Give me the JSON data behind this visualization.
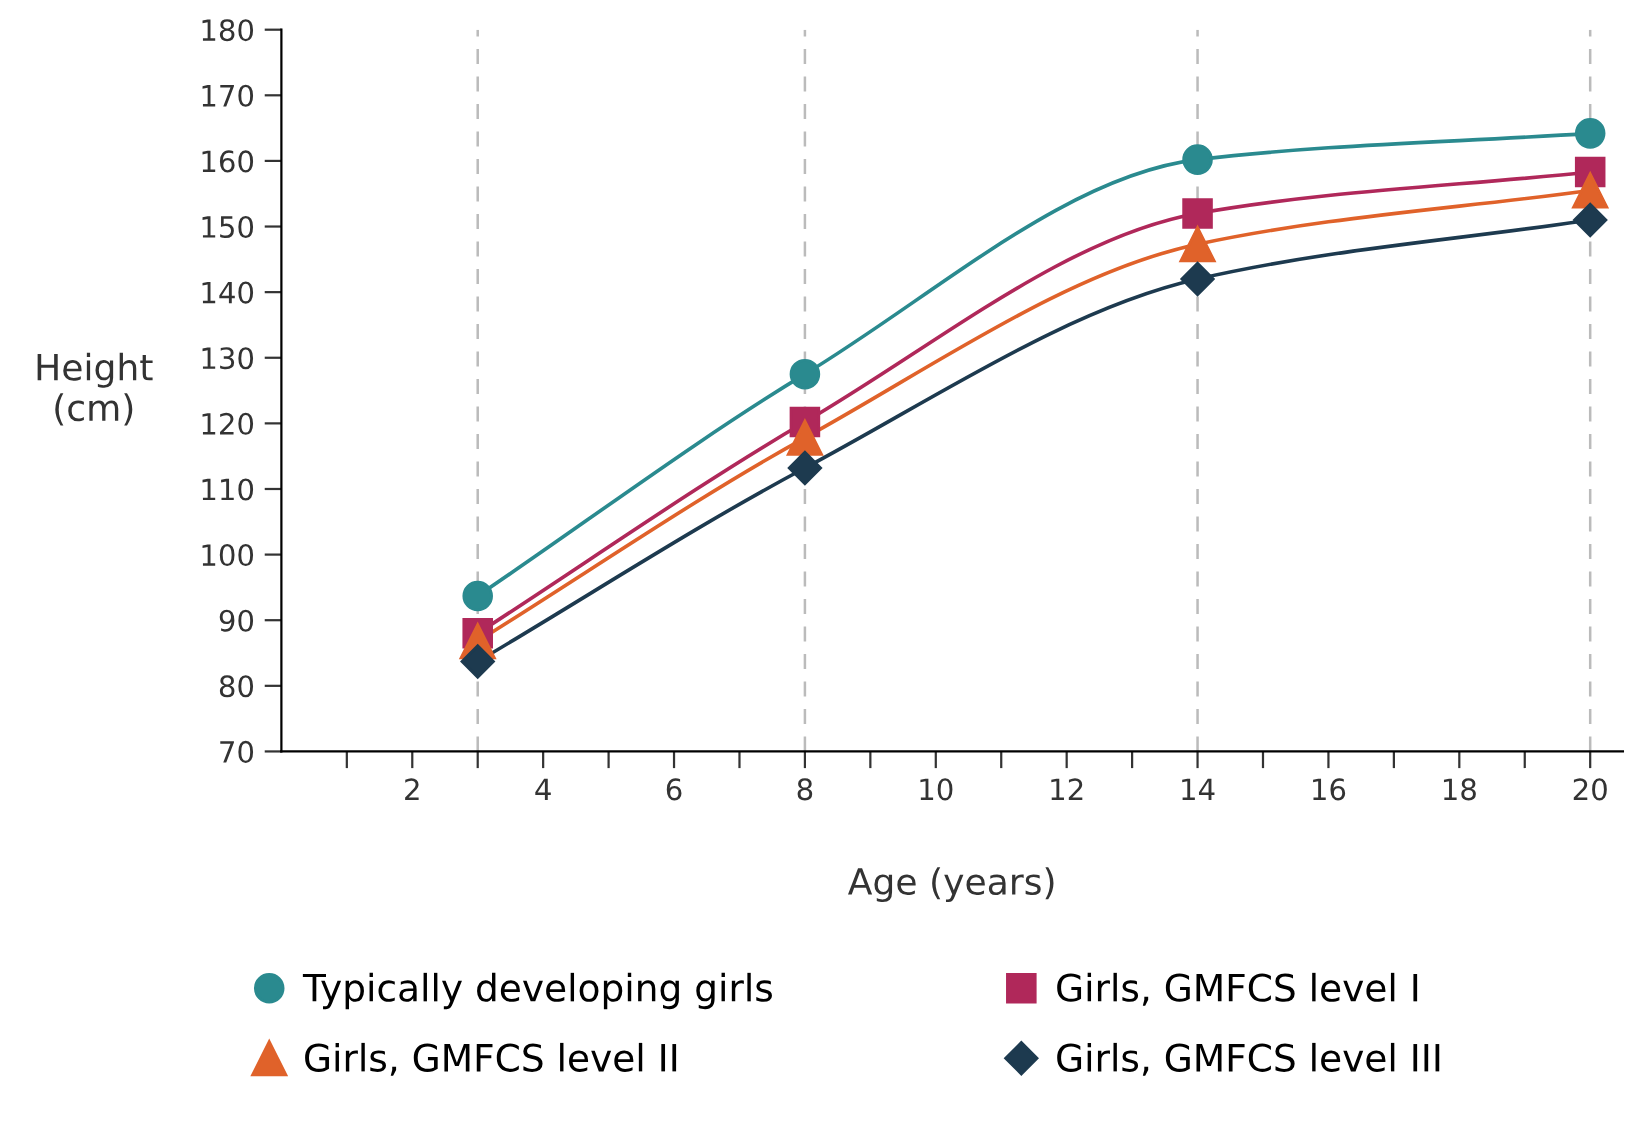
{
  "chart_data": {
    "type": "line",
    "xlabel": "Age (years)",
    "ylabel": "Height\n(cm)",
    "x": [
      3,
      8,
      14,
      20
    ],
    "series": [
      {
        "name": "Typically developing girls",
        "color": "#2a8a8f",
        "marker": "circle",
        "values": [
          93.7,
          127.5,
          160.2,
          164.2
        ]
      },
      {
        "name": "Girls, GMFCS level I",
        "color": "#b0285a",
        "marker": "square",
        "values": [
          88,
          120.2,
          152,
          158.3
        ]
      },
      {
        "name": "Girls, GMFCS level II",
        "color": "#e0622a",
        "marker": "triangle",
        "values": [
          86.8,
          117.8,
          147.3,
          155.5
        ]
      },
      {
        "name": "Girls, GMFCS level III",
        "color": "#1d3a4f",
        "marker": "diamond",
        "values": [
          83.7,
          113.2,
          142,
          151
        ]
      }
    ],
    "xlim": [
      0,
      20.5
    ],
    "xticks": [
      {
        "value": 1,
        "label": null
      },
      2,
      {
        "value": 3,
        "label": null
      },
      4,
      {
        "value": 5,
        "label": null
      },
      6,
      {
        "value": 7,
        "label": null
      },
      8,
      {
        "value": 9,
        "label": null
      },
      10,
      {
        "value": 11,
        "label": null
      },
      12,
      {
        "value": 13,
        "label": null
      },
      14,
      {
        "value": 15,
        "label": null
      },
      16,
      {
        "value": 17,
        "label": null
      },
      18,
      {
        "value": 19,
        "label": null
      },
      20
    ],
    "ylim": [
      70,
      180
    ],
    "yticks": [
      70,
      80,
      90,
      100,
      110,
      120,
      130,
      140,
      150,
      160,
      170,
      180
    ],
    "ref_lines": [
      {
        "axis": "x",
        "value": 3,
        "color": "#bbbbbb",
        "line_style": "dashed"
      },
      {
        "axis": "x",
        "value": 8,
        "color": "#bbbbbb",
        "line_style": "dashed"
      },
      {
        "axis": "x",
        "value": 14,
        "color": "#bbbbbb",
        "line_style": "dashed"
      },
      {
        "axis": "x",
        "value": 20,
        "color": "#bbbbbb",
        "line_style": "dashed"
      }
    ],
    "grid": false,
    "legend": "bottom"
  }
}
